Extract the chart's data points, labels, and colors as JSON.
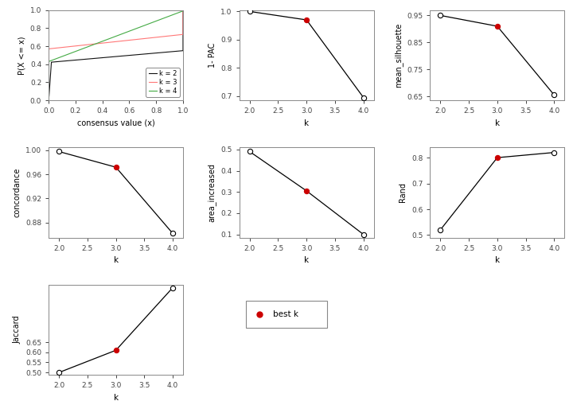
{
  "ecdf": {
    "k2_color": "#000000",
    "k3_color": "#FF6666",
    "k4_color": "#00BB00",
    "legend_labels": [
      "k = 2",
      "k = 3",
      "k = 4"
    ]
  },
  "pac": {
    "k": [
      2,
      3,
      4
    ],
    "y": [
      1.0,
      0.97,
      0.695
    ],
    "best_k": 3,
    "ylabel": "1- PAC",
    "yticks": [
      0.7,
      0.8,
      0.9,
      1.0
    ],
    "ylim": [
      0.685,
      1.005
    ]
  },
  "silhouette": {
    "k": [
      2,
      3,
      4
    ],
    "y": [
      0.95,
      0.91,
      0.655
    ],
    "best_k": 3,
    "ylabel": "mean_silhouette",
    "yticks": [
      0.65,
      0.75,
      0.85,
      0.95
    ],
    "ylim": [
      0.635,
      0.97
    ]
  },
  "concordance": {
    "k": [
      2,
      3,
      4
    ],
    "y": [
      0.998,
      0.972,
      0.862
    ],
    "best_k": 3,
    "ylabel": "concordance",
    "yticks": [
      0.88,
      0.92,
      0.96,
      1.0
    ],
    "ylim": [
      0.855,
      1.005
    ]
  },
  "area_increased": {
    "k": [
      2,
      3,
      4
    ],
    "y": [
      0.49,
      0.305,
      0.1
    ],
    "best_k": 3,
    "ylabel": "area_increased",
    "yticks": [
      0.1,
      0.2,
      0.3,
      0.4,
      0.5
    ],
    "ylim": [
      0.085,
      0.51
    ]
  },
  "rand": {
    "k": [
      2,
      3,
      4
    ],
    "y": [
      0.52,
      0.8,
      0.82
    ],
    "best_k": 3,
    "ylabel": "Rand",
    "yticks": [
      0.5,
      0.6,
      0.7,
      0.8
    ],
    "ylim": [
      0.49,
      0.84
    ]
  },
  "jaccard": {
    "k": [
      2,
      3,
      4
    ],
    "y": [
      0.5,
      0.61,
      0.92
    ],
    "best_k": 3,
    "ylabel": "Jaccard",
    "yticks": [
      0.5,
      0.55,
      0.6,
      0.65
    ],
    "ylim": [
      0.488,
      0.935
    ]
  },
  "line_color": "#000000",
  "best_k_color": "#CC0000",
  "bg_color": "#FFFFFF"
}
